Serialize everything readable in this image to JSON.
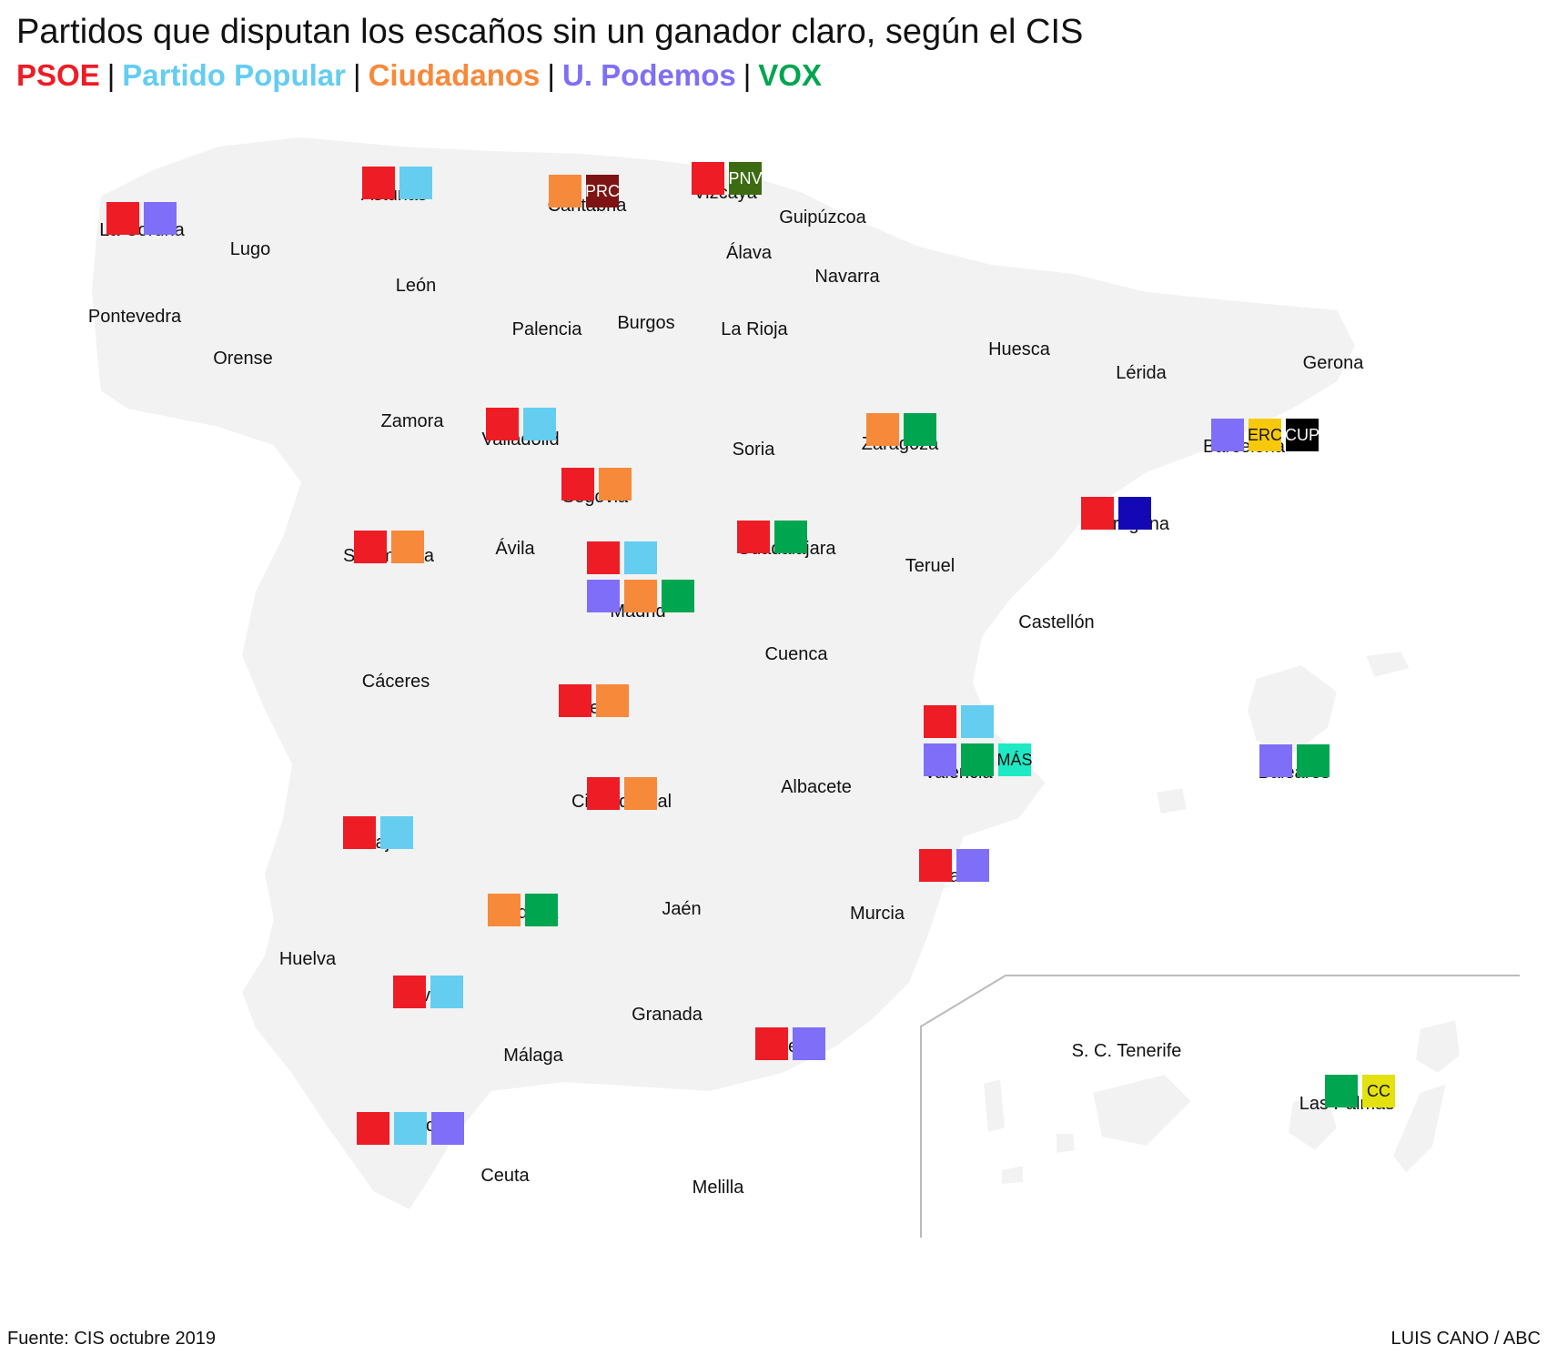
{
  "title": "Partidos que disputan los escaños sin un ganador claro, según el CIS",
  "legend": [
    {
      "label": "PSOE",
      "color": "#ee1c25"
    },
    {
      "label": "Partido Popular",
      "color": "#64cdf0"
    },
    {
      "label": "Ciudadanos",
      "color": "#f7893b"
    },
    {
      "label": "U. Podemos",
      "color": "#7f6ef7"
    },
    {
      "label": "VOX",
      "color": "#00a54f"
    }
  ],
  "other_parties": {
    "PRC": {
      "label": "PRC",
      "color": "#7d1413",
      "text_color": "#ffffff"
    },
    "PNV": {
      "label": "PNV",
      "color": "#3d6b12",
      "text_color": "#ffffff"
    },
    "ERC": {
      "label": "ERC",
      "color": "#f7c90a",
      "text_color": "#111111"
    },
    "CUP": {
      "label": "CUP",
      "color": "#000000",
      "text_color": "#ffffff"
    },
    "MAS": {
      "label": "MÁS",
      "color": "#1de9c4",
      "text_color": "#111111"
    },
    "CC": {
      "label": "CC",
      "color": "#e3e10e",
      "text_color": "#111111"
    },
    "BLUE": {
      "label": "",
      "color": "#1407b5",
      "text_color": "#ffffff"
    }
  },
  "provinces_contested": [
    {
      "name": "La Coruña",
      "parties": [
        "PSOE",
        "U. Podemos"
      ]
    },
    {
      "name": "Asturias",
      "parties": [
        "PSOE",
        "Partido Popular"
      ]
    },
    {
      "name": "Cantabria",
      "parties": [
        "Ciudadanos",
        "PRC"
      ]
    },
    {
      "name": "Vizcaya",
      "parties": [
        "PSOE",
        "PNV"
      ]
    },
    {
      "name": "Valladolid",
      "parties": [
        "PSOE",
        "Partido Popular"
      ]
    },
    {
      "name": "Zaragoza",
      "parties": [
        "Ciudadanos",
        "VOX"
      ]
    },
    {
      "name": "Barcelona",
      "parties": [
        "U. Podemos",
        "ERC",
        "CUP"
      ]
    },
    {
      "name": "Segovia",
      "parties": [
        "PSOE",
        "Ciudadanos"
      ]
    },
    {
      "name": "Tarragona",
      "parties": [
        "PSOE",
        "BLUE"
      ]
    },
    {
      "name": "Salamanca",
      "parties": [
        "PSOE",
        "Ciudadanos"
      ]
    },
    {
      "name": "Madrid",
      "parties": [
        "PSOE",
        "Partido Popular",
        "U. Podemos",
        "Ciudadanos",
        "VOX"
      ]
    },
    {
      "name": "Guadalajara",
      "parties": [
        "PSOE",
        "VOX"
      ]
    },
    {
      "name": "Toledo",
      "parties": [
        "PSOE",
        "Ciudadanos"
      ]
    },
    {
      "name": "Valencia",
      "parties": [
        "PSOE",
        "Partido Popular",
        "U. Podemos",
        "VOX",
        "MAS"
      ]
    },
    {
      "name": "Baleares",
      "parties": [
        "U. Podemos",
        "VOX"
      ]
    },
    {
      "name": "Ciudad Real",
      "parties": [
        "PSOE",
        "Ciudadanos"
      ]
    },
    {
      "name": "Badajoz",
      "parties": [
        "PSOE",
        "Partido Popular"
      ]
    },
    {
      "name": "Alicante",
      "parties": [
        "PSOE",
        "U. Podemos"
      ]
    },
    {
      "name": "Córdoba",
      "parties": [
        "Ciudadanos",
        "VOX"
      ]
    },
    {
      "name": "Sevilla",
      "parties": [
        "PSOE",
        "Partido Popular"
      ]
    },
    {
      "name": "Almería",
      "parties": [
        "PSOE",
        "U. Podemos"
      ]
    },
    {
      "name": "Las Palmas",
      "parties": [
        "VOX",
        "CC"
      ]
    },
    {
      "name": "Cádiz",
      "parties": [
        "PSOE",
        "Partido Popular",
        "U. Podemos"
      ]
    }
  ],
  "provinces_other": [
    "Lugo",
    "Pontevedra",
    "Orense",
    "León",
    "Palencia",
    "Burgos",
    "Guipúzcoa",
    "Álava",
    "Navarra",
    "La Rioja",
    "Huesca",
    "Lérida",
    "Gerona",
    "Zamora",
    "Soria",
    "Ávila",
    "Teruel",
    "Castellón",
    "Cáceres",
    "Cuenca",
    "Albacete",
    "Jaén",
    "Murcia",
    "Huelva",
    "Granada",
    "Málaga",
    "S. C. Tenerife",
    "Ceuta",
    "Melilla"
  ],
  "source": "Fuente: CIS octubre 2019",
  "credit": "LUIS CANO / ABC"
}
